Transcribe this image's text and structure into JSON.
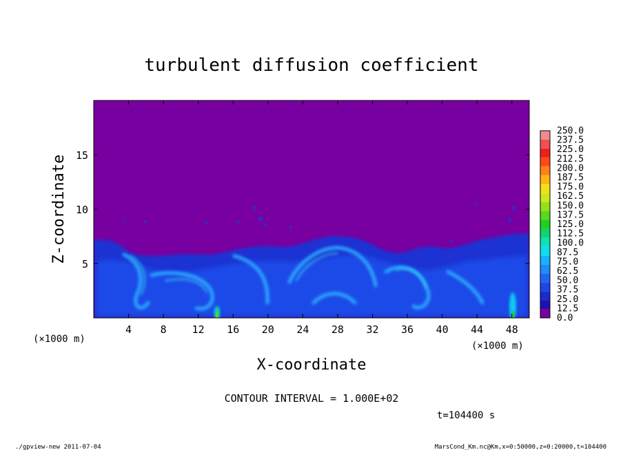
{
  "chart_data": {
    "type": "heatmap",
    "title": "turbulent diffusion coefficient",
    "xlabel": "X-coordinate",
    "ylabel": "Z-coordinate",
    "x_unit": "(×1000 m)",
    "z_unit": "(×1000 m)",
    "xlim": [
      0,
      50
    ],
    "ylim": [
      0,
      20
    ],
    "x_ticks": [
      4,
      8,
      12,
      16,
      20,
      24,
      28,
      32,
      36,
      40,
      44,
      48
    ],
    "y_ticks": [
      5,
      10,
      15
    ],
    "colorbar": {
      "levels": [
        "0.0",
        "12.5",
        "25.0",
        "37.5",
        "50.0",
        "62.5",
        "75.0",
        "87.5",
        "100.0",
        "112.5",
        "125.0",
        "137.5",
        "150.0",
        "162.5",
        "175.0",
        "187.5",
        "200.0",
        "212.5",
        "225.0",
        "237.5",
        "250.0"
      ],
      "colors": [
        "#7800a0",
        "#1f10b4",
        "#1a2cd0",
        "#1a48e6",
        "#1c66f2",
        "#1e8cfa",
        "#12b4ff",
        "#10dcf0",
        "#10e0b4",
        "#14d470",
        "#20d020",
        "#5ad81c",
        "#96e01a",
        "#cce818",
        "#f0e018",
        "#ffb414",
        "#ff8214",
        "#ff4a14",
        "#f01e1e",
        "#f05050",
        "#f08c8c"
      ]
    },
    "field_description": "purple (0) above ~7 km; blue to cyan turbulent mixed layer below, with local maxima near x=14 and x=48",
    "contour_interval": "CONTOUR INTERVAL = 1.000E+02",
    "time": "t=104400 s"
  },
  "footer": {
    "left": "./gpview-new  2011-07-04",
    "right": "MarsCond_Km.nc@Km,x=0:50000,z=0:20000,t=104400"
  }
}
